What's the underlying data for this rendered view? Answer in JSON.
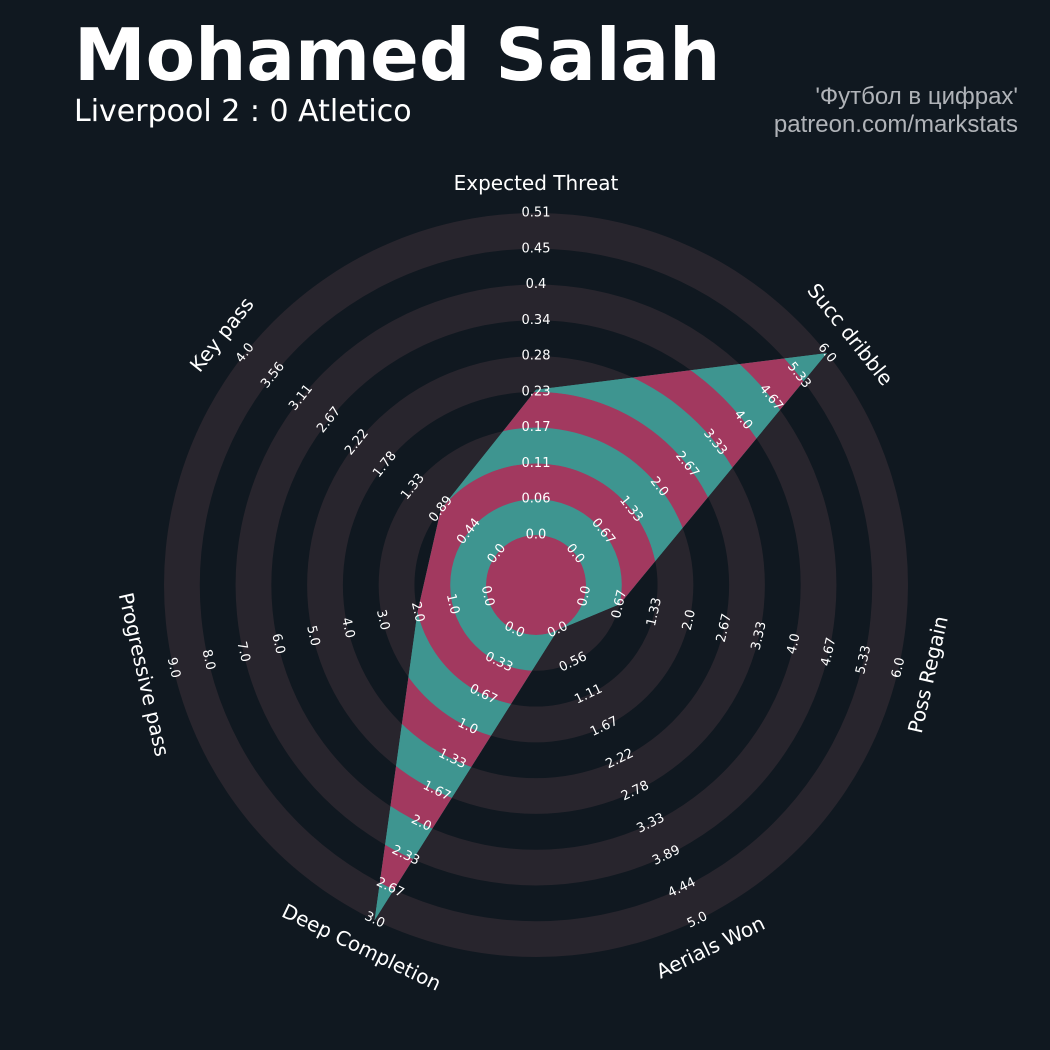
{
  "header": {
    "title": "Mohamed Salah",
    "subtitle": "Liverpool 2 : 0 Atletico",
    "credit_line1": "'Футбол в цифрах'",
    "credit_line2": "patreon.com/markstats"
  },
  "colors": {
    "background": "#101820",
    "ring_band": "#28252d",
    "teal": "#3e9590",
    "magenta": "#a2395f",
    "text": "#ffffff",
    "credit_text": "#b0b3b8"
  },
  "chart_data": {
    "type": "radar",
    "title": "",
    "grid": "alternating circular bands",
    "params": [
      {
        "name": "Expected Threat",
        "range": [
          0.0,
          0.51
        ],
        "value": 0.23,
        "ticks": [
          "0.0",
          "0.06",
          "0.11",
          "0.17",
          "0.23",
          "0.28",
          "0.34",
          "0.4",
          "0.45",
          "0.51"
        ]
      },
      {
        "name": "Succ dribble",
        "range": [
          0.0,
          6.0
        ],
        "value": 6.0,
        "ticks": [
          "0.0",
          "0.67",
          "1.33",
          "2.0",
          "2.67",
          "3.33",
          "4.0",
          "4.67",
          "5.33",
          "6.0"
        ]
      },
      {
        "name": "Poss Regain",
        "range": [
          0.0,
          6.0
        ],
        "value": 0.67,
        "ticks": [
          "0.0",
          "0.67",
          "1.33",
          "2.0",
          "2.67",
          "3.33",
          "4.0",
          "4.67",
          "5.33",
          "6.0"
        ]
      },
      {
        "name": "Aerials Won",
        "range": [
          0.0,
          5.0
        ],
        "value": 0.0,
        "ticks": [
          "0.0",
          "0.56",
          "1.11",
          "1.67",
          "2.22",
          "2.78",
          "3.33",
          "3.89",
          "4.44",
          "5.0"
        ]
      },
      {
        "name": "Deep Completion",
        "range": [
          0.0,
          3.0
        ],
        "value": 3.0,
        "ticks": [
          "0.0",
          "0.33",
          "0.67",
          "1.0",
          "1.33",
          "1.67",
          "2.0",
          "2.33",
          "2.67",
          "3.0"
        ]
      },
      {
        "name": "Progressive pass",
        "range": [
          0.0,
          9.0
        ],
        "value": 2.0,
        "ticks": [
          "0.0",
          "1.0",
          "2.0",
          "3.0",
          "4.0",
          "5.0",
          "6.0",
          "7.0",
          "8.0",
          "9.0"
        ]
      },
      {
        "name": "Key pass",
        "range": [
          0.0,
          4.0
        ],
        "value": 0.89,
        "ticks": [
          "0.0",
          "0.44",
          "0.89",
          "1.33",
          "1.78",
          "2.22",
          "2.67",
          "3.11",
          "3.56",
          "4.0"
        ]
      }
    ]
  }
}
